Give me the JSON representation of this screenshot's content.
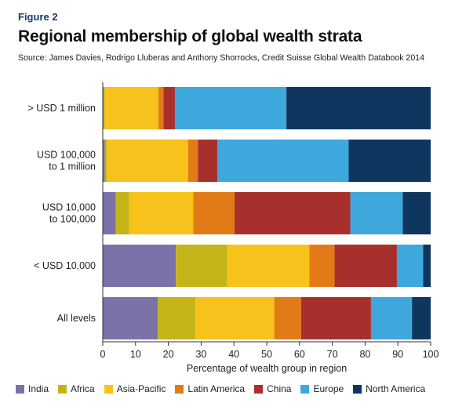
{
  "figure_label": "Figure 2",
  "title": "Regional membership of global wealth strata",
  "source": "Source: James Davies, Rodrigo Lluberas and Anthony Shorrocks, Credit Suisse Global Wealth Databook 2014",
  "chart_data": {
    "type": "bar",
    "orientation": "horizontal",
    "stacked": true,
    "xlabel": "Percentage of wealth group in region",
    "ylabel": "",
    "xlim": [
      0,
      100
    ],
    "xticks": [
      "0",
      "10",
      "20",
      "30",
      "40",
      "50",
      "60",
      "70",
      "80",
      "90",
      "100"
    ],
    "grid": false,
    "legend_position": "bottom",
    "categories": [
      [
        "> USD 1 million"
      ],
      [
        "USD 100,000",
        "to 1 million"
      ],
      [
        "USD 10,000",
        "to 100,000"
      ],
      [
        "< USD 10,000"
      ],
      [
        "All levels"
      ]
    ],
    "series": [
      {
        "name": "India",
        "color": "#7b72a8",
        "values": [
          0.3,
          0.6,
          4.0,
          22.3,
          16.8
        ]
      },
      {
        "name": "Africa",
        "color": "#c4b41a",
        "values": [
          0.3,
          0.6,
          4.0,
          15.7,
          11.5
        ]
      },
      {
        "name": "Asia-Pacific",
        "color": "#f7c21b",
        "values": [
          16.4,
          24.8,
          19.6,
          25.0,
          24.0
        ]
      },
      {
        "name": "Latin America",
        "color": "#e27b17",
        "values": [
          1.5,
          3.0,
          12.6,
          7.7,
          8.2
        ]
      },
      {
        "name": "China",
        "color": "#a8302c",
        "values": [
          3.5,
          6.0,
          35.3,
          19.0,
          21.3
        ]
      },
      {
        "name": "Europe",
        "color": "#3ea7dc",
        "values": [
          34.0,
          40.0,
          16.0,
          8.0,
          12.5
        ]
      },
      {
        "name": "North America",
        "color": "#0f365f",
        "values": [
          44.0,
          25.0,
          8.5,
          2.3,
          5.7
        ]
      }
    ]
  }
}
